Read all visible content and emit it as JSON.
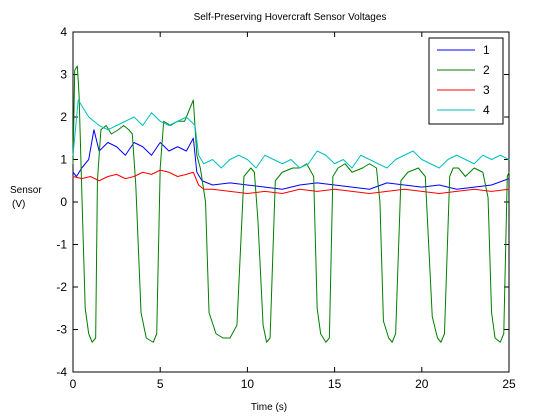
{
  "chart_data": {
    "type": "line",
    "title": "Self-Preserving Hovercraft Sensor Voltages",
    "xlabel": "Time (s)",
    "ylabel": {
      "line1": "Sensor",
      "line2": "(V)"
    },
    "xlim": [
      0,
      25
    ],
    "ylim": [
      -4,
      4
    ],
    "xticks": [
      "0",
      "5",
      "10",
      "15",
      "20",
      "25"
    ],
    "yticks": [
      "4",
      "3",
      "2",
      "1",
      "0",
      "-1",
      "-2",
      "-3",
      "-4"
    ],
    "grid": false,
    "legend_position": "top-right",
    "series": [
      {
        "name": "1",
        "color": "#0000ff",
        "x": [
          0,
          0.2,
          0.5,
          0.9,
          1.2,
          1.5,
          2,
          2.5,
          3,
          3.5,
          4,
          4.5,
          5,
          5.5,
          6,
          6.5,
          6.9,
          7.1,
          7.4,
          8,
          9,
          10,
          11,
          12,
          13,
          14,
          15,
          16,
          17,
          18,
          19,
          20,
          21,
          22,
          23,
          24,
          25
        ],
        "values": [
          0.7,
          0.6,
          0.8,
          1.0,
          1.7,
          1.2,
          1.4,
          1.3,
          1.1,
          1.4,
          1.3,
          1.1,
          1.4,
          1.2,
          1.3,
          1.2,
          1.5,
          0.7,
          0.5,
          0.4,
          0.45,
          0.4,
          0.35,
          0.3,
          0.4,
          0.45,
          0.4,
          0.35,
          0.3,
          0.45,
          0.4,
          0.35,
          0.4,
          0.3,
          0.35,
          0.4,
          0.55
        ]
      },
      {
        "name": "2",
        "color": "#007f00",
        "x": [
          0,
          0.1,
          0.25,
          0.35,
          0.5,
          0.7,
          0.9,
          1.1,
          1.3,
          1.4,
          1.6,
          1.9,
          2.2,
          2.6,
          2.9,
          3.2,
          3.4,
          3.6,
          3.9,
          4.2,
          4.6,
          4.8,
          5.0,
          5.2,
          5.6,
          6.0,
          6.4,
          6.9,
          7.1,
          7.3,
          7.6,
          7.8,
          8.2,
          8.6,
          9.0,
          9.4,
          9.8,
          10.2,
          10.4,
          10.6,
          10.9,
          11.1,
          11.3,
          11.6,
          12.0,
          12.6,
          13.0,
          13.4,
          13.8,
          14.0,
          14.2,
          14.5,
          14.7,
          14.9,
          15.2,
          15.6,
          16.0,
          16.6,
          17.0,
          17.4,
          17.6,
          17.8,
          18.1,
          18.3,
          18.5,
          18.8,
          19.2,
          19.8,
          20.2,
          20.6,
          20.9,
          21.1,
          21.3,
          21.6,
          21.8,
          22.1,
          22.5,
          23.0,
          23.5,
          23.8,
          24.0,
          24.2,
          24.5,
          24.7,
          24.9,
          25.0
        ],
        "values": [
          0.9,
          3.1,
          3.2,
          2.5,
          0.3,
          -2.5,
          -3.1,
          -3.3,
          -3.2,
          0.5,
          1.7,
          1.8,
          1.6,
          1.7,
          1.8,
          1.7,
          1.6,
          0.4,
          -2.6,
          -3.2,
          -3.3,
          -3.1,
          0.8,
          1.9,
          1.8,
          1.9,
          1.9,
          2.4,
          1.1,
          0.8,
          0.0,
          -2.6,
          -3.1,
          -3.2,
          -3.2,
          -2.9,
          0.6,
          0.8,
          0.7,
          -0.4,
          -2.9,
          -3.3,
          -3.2,
          0.5,
          0.7,
          0.8,
          0.8,
          0.9,
          0.6,
          -2.5,
          -3.1,
          -3.3,
          -3.2,
          0.6,
          0.8,
          0.9,
          0.7,
          0.8,
          0.9,
          0.8,
          0.0,
          -2.8,
          -3.2,
          -3.3,
          -3.1,
          0.5,
          0.7,
          0.8,
          0.6,
          -2.7,
          -3.2,
          -3.3,
          -3.1,
          0.6,
          0.8,
          0.8,
          0.6,
          0.8,
          0.7,
          0.1,
          -2.6,
          -3.2,
          -3.3,
          -3.1,
          0.6,
          0.7
        ]
      },
      {
        "name": "3",
        "color": "#ff0000",
        "x": [
          0,
          0.5,
          1,
          1.5,
          2,
          2.5,
          3,
          3.5,
          4,
          4.5,
          5,
          5.5,
          6,
          6.5,
          6.9,
          7.2,
          7.5,
          8,
          9,
          10,
          11,
          12,
          13,
          14,
          15,
          16,
          17,
          18,
          19,
          20,
          21,
          22,
          23,
          24,
          25
        ],
        "values": [
          0.6,
          0.55,
          0.6,
          0.5,
          0.6,
          0.65,
          0.55,
          0.6,
          0.7,
          0.65,
          0.75,
          0.7,
          0.6,
          0.65,
          0.7,
          0.4,
          0.3,
          0.3,
          0.25,
          0.2,
          0.25,
          0.2,
          0.3,
          0.25,
          0.3,
          0.25,
          0.2,
          0.25,
          0.3,
          0.25,
          0.2,
          0.25,
          0.3,
          0.25,
          0.3
        ]
      },
      {
        "name": "4",
        "color": "#00bfbf",
        "x": [
          0,
          0.3,
          0.6,
          0.9,
          1.2,
          1.5,
          2,
          2.5,
          3,
          3.5,
          4,
          4.5,
          5,
          5.5,
          6,
          6.5,
          7.0,
          7.2,
          7.5,
          8,
          8.5,
          9,
          9.5,
          10,
          10.5,
          11,
          11.5,
          12,
          12.5,
          13,
          13.5,
          14,
          14.5,
          15,
          15.5,
          16,
          16.5,
          17,
          17.5,
          18,
          18.5,
          19,
          19.5,
          20,
          20.5,
          21,
          21.5,
          22,
          22.5,
          23,
          23.5,
          24,
          24.5,
          25
        ],
        "values": [
          1.1,
          2.4,
          2.2,
          2.0,
          1.9,
          1.8,
          1.7,
          1.8,
          1.9,
          2.0,
          1.8,
          2.1,
          1.9,
          1.8,
          1.9,
          2.0,
          1.8,
          1.1,
          0.9,
          1.0,
          0.8,
          1.0,
          1.1,
          1.0,
          0.8,
          1.1,
          1.0,
          0.9,
          1.0,
          0.8,
          0.9,
          1.2,
          1.1,
          0.9,
          1.0,
          0.8,
          1.1,
          1.0,
          0.9,
          0.8,
          1.0,
          1.1,
          1.2,
          1.0,
          0.9,
          0.8,
          1.0,
          1.1,
          1.0,
          0.9,
          1.1,
          1.0,
          1.1,
          1.0
        ]
      }
    ]
  }
}
